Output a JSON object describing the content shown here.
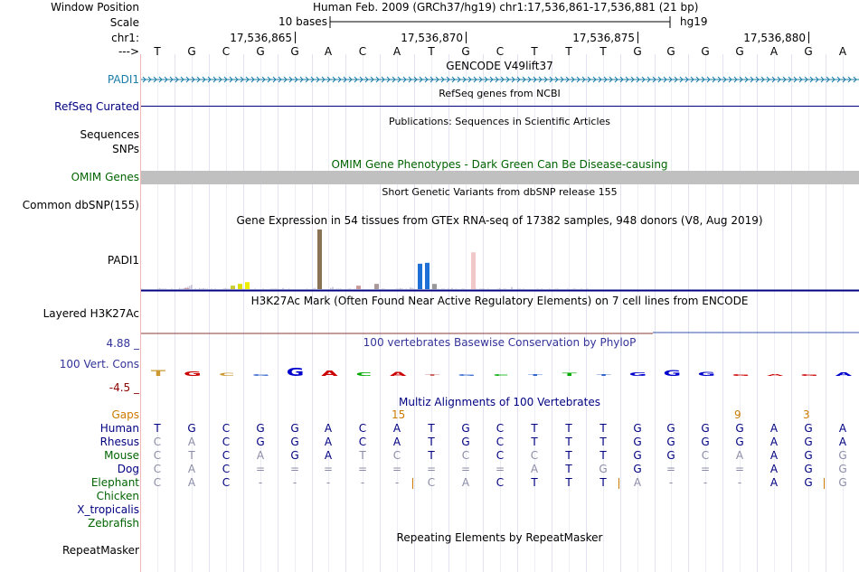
{
  "header": {
    "window_position_label": "Window Position",
    "window_position_value": "Human Feb. 2009 (GRCh37/hg19)   chr1:17,536,861-17,536,881 (21 bp)",
    "scale_label": "Scale",
    "scale_text": "10 bases",
    "scale_assembly": "hg19",
    "chrom_label": "chr1:",
    "ticks": [
      "17,536,865",
      "17,536,870",
      "17,536,875",
      "17,536,880"
    ],
    "strand_label": "--->",
    "sequence": [
      "T",
      "G",
      "C",
      "G",
      "G",
      "A",
      "C",
      "A",
      "T",
      "G",
      "C",
      "T",
      "T",
      "T",
      "G",
      "G",
      "G",
      "G",
      "A",
      "G",
      "A"
    ]
  },
  "tracks": {
    "gencode_title": "GENCODE V49lift37",
    "gencode_label": "PADI1",
    "refseq_title": "RefSeq genes from NCBI",
    "refseq_label": "RefSeq Curated",
    "publications_title": "Publications: Sequences in Scientific Articles",
    "sequences_label": "Sequences",
    "snps_label": "SNPs",
    "omim_title": "OMIM Gene Phenotypes - Dark Green Can Be Disease-causing",
    "omim_label": "OMIM Genes",
    "dbsnp_title": "Short Genetic Variants from dbSNP release 155",
    "dbsnp_label": "Common dbSNP(155)",
    "gtex_title": "Gene Expression in 54 tissues from GTEx RNA-seq of 17382 samples, 948 donors (V8, Aug 2019)",
    "gtex_label": "PADI1",
    "h3k27ac_title": "H3K27Ac Mark (Often Found Near Active Regulatory Elements) on 7 cell lines from ENCODE",
    "h3k27ac_label": "Layered H3K27Ac",
    "cons_title": "100 vertebrates Basewise Conservation by PhyloP",
    "cons_label": "100 Vert. Cons",
    "cons_max": "4.88 _",
    "cons_min": "-4.5 _",
    "multiz_title": "Multiz Alignments of 100 Vertebrates",
    "repeat_title": "Repeating Elements by RepeatMasker",
    "repeat_label": "RepeatMasker"
  },
  "gtex_values": [
    1,
    0,
    0,
    0,
    0,
    0,
    0,
    0,
    1,
    2,
    1,
    1,
    1,
    0,
    0,
    1,
    0,
    0,
    0,
    2,
    1,
    2,
    3,
    4,
    6,
    8,
    0,
    1,
    0,
    2,
    1,
    2,
    1,
    1,
    0,
    1,
    0,
    1,
    0,
    0,
    0,
    1,
    2,
    1,
    1,
    0,
    0,
    0,
    0,
    0,
    1,
    1,
    1,
    0,
    2,
    0,
    0,
    1,
    0,
    0,
    0,
    1,
    0,
    0,
    0,
    1,
    1,
    1,
    1,
    0,
    0,
    2,
    0,
    0,
    1,
    0,
    0,
    0,
    0,
    0,
    0,
    0,
    0,
    1,
    0,
    0,
    1,
    2,
    0,
    0,
    1,
    0,
    0,
    0,
    0,
    2,
    4,
    0,
    1,
    1,
    1,
    0,
    0,
    0,
    1,
    1,
    0,
    1,
    0,
    0,
    0,
    0,
    0,
    0,
    0,
    0,
    0,
    1,
    0,
    0,
    0,
    1,
    1,
    0,
    0,
    0,
    0,
    0,
    1,
    1,
    2,
    1,
    0,
    1,
    0,
    3,
    2,
    1,
    0,
    1,
    1,
    1,
    0,
    0,
    1,
    0,
    0,
    1,
    0,
    1,
    0,
    1,
    1,
    0,
    1,
    0,
    2,
    0,
    1,
    0,
    0,
    1,
    1,
    0,
    0,
    0,
    0,
    0,
    1,
    0,
    1,
    1,
    1,
    0,
    1,
    0,
    0,
    0,
    0,
    1,
    2,
    0,
    1,
    1,
    0,
    0,
    4,
    0,
    0,
    1,
    1,
    0,
    1,
    0,
    0,
    0,
    0,
    0,
    0,
    1,
    0,
    1,
    0,
    0,
    0,
    1,
    0,
    0,
    1,
    1,
    0,
    0,
    0,
    0,
    1,
    0,
    0,
    1,
    1,
    0,
    0,
    1,
    0,
    0,
    1,
    0,
    0,
    0,
    0,
    0,
    0,
    0,
    0,
    0,
    0,
    0,
    0,
    0,
    0,
    0,
    0,
    0,
    0,
    0,
    0,
    0,
    0,
    0,
    0,
    0,
    0,
    0,
    0,
    0,
    0,
    0,
    0,
    0,
    0,
    0,
    0,
    0,
    0,
    0,
    0,
    0,
    0,
    0,
    0,
    0,
    0,
    0,
    0,
    0,
    0,
    0,
    0,
    0,
    0,
    0,
    0,
    0,
    0,
    0,
    0,
    0,
    0,
    0,
    0,
    0,
    0,
    0,
    0,
    0,
    0,
    0,
    0,
    0
  ],
  "gtex_bars": [
    {
      "pos": 0.06,
      "value": 1,
      "color": "#cc9999"
    },
    {
      "pos": 0.125,
      "value": 4,
      "color": "#cccc33"
    },
    {
      "pos": 0.135,
      "value": 6,
      "color": "#dddd00"
    },
    {
      "pos": 0.145,
      "value": 8,
      "color": "#eeee00"
    },
    {
      "pos": 0.245,
      "value": 68,
      "color": "#8b7355"
    },
    {
      "pos": 0.3,
      "value": 4,
      "color": "#cc9999"
    },
    {
      "pos": 0.325,
      "value": 6,
      "color": "#aa9999"
    },
    {
      "pos": 0.385,
      "value": 29,
      "color": "#1e70d6"
    },
    {
      "pos": 0.395,
      "value": 30,
      "color": "#1e70d6"
    },
    {
      "pos": 0.405,
      "value": 6,
      "color": "#999999"
    },
    {
      "pos": 0.46,
      "value": 42,
      "color": "#f0c8c8"
    }
  ],
  "multiz": {
    "gap_label": "Gaps",
    "gap_counts": [
      {
        "col": 7,
        "value": "15"
      },
      {
        "col": 17,
        "value": "9"
      },
      {
        "col": 19,
        "value": "3"
      }
    ],
    "species": [
      {
        "name": "Human",
        "color": "#000080",
        "bases": [
          "T",
          "G",
          "C",
          "G",
          "G",
          "A",
          "C",
          "A",
          "T",
          "G",
          "C",
          "T",
          "T",
          "T",
          "G",
          "G",
          "G",
          "G",
          "A",
          "G",
          "A"
        ]
      },
      {
        "name": "Rhesus",
        "color": "#000080",
        "bases": [
          "C",
          "A",
          "C",
          "G",
          "G",
          "A",
          "C",
          "A",
          "T",
          "G",
          "C",
          "T",
          "T",
          "T",
          "G",
          "G",
          "G",
          "G",
          "A",
          "G",
          "A"
        ]
      },
      {
        "name": "Mouse",
        "color": "#006400",
        "bases": [
          "C",
          "T",
          "C",
          "A",
          "G",
          "A",
          "T",
          "C",
          "T",
          "C",
          "C",
          "C",
          "T",
          "T",
          "G",
          "G",
          "C",
          "A",
          "A",
          "G",
          "G"
        ]
      },
      {
        "name": "Dog",
        "color": "#000080",
        "bases": [
          "C",
          "A",
          "C",
          "=",
          "=",
          "=",
          "=",
          "=",
          "=",
          "=",
          "=",
          "A",
          "T",
          "G",
          "G",
          "=",
          "=",
          "=",
          "A",
          "G",
          "G"
        ]
      },
      {
        "name": "Elephant",
        "color": "#006400",
        "bases": [
          "C",
          "A",
          "C",
          "-",
          "-",
          "-",
          "-",
          "-",
          "C",
          "A",
          "C",
          "T",
          "T",
          "T",
          "A",
          "-",
          "-",
          "-",
          "A",
          "G",
          "G"
        ]
      },
      {
        "name": "Chicken",
        "color": "#006400",
        "bases": []
      },
      {
        "name": "X_tropicalis",
        "color": "#000080",
        "bases": []
      },
      {
        "name": "Zebrafish",
        "color": "#006400",
        "bases": []
      }
    ]
  },
  "colors": {
    "accent": "#000080",
    "gencode": "#1a7ca8",
    "omim": "#006400",
    "gray_band": "#c0c0c0",
    "gap_orange": "#cc7a00",
    "cons_scale": "#333399",
    "cons_min_color": "#8b0000"
  }
}
